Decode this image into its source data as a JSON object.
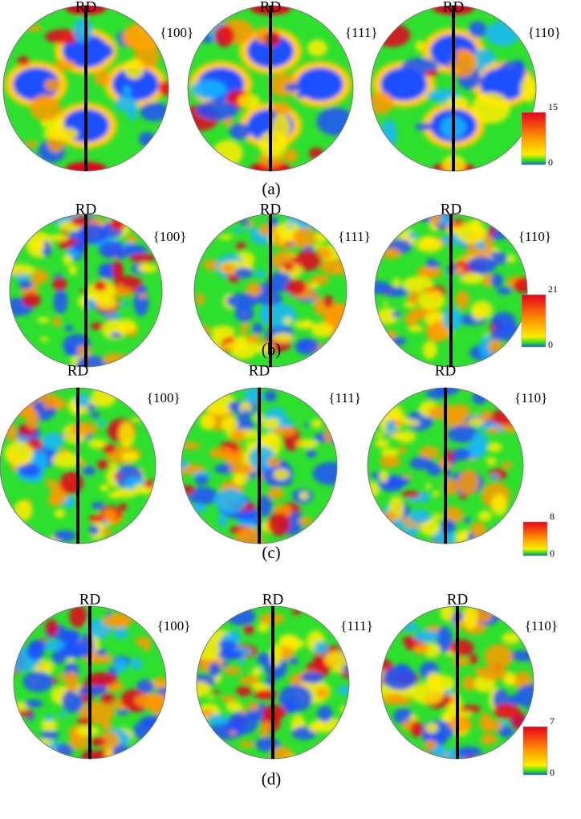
{
  "rows": [
    {
      "label": "(a)",
      "panels": [
        {
          "title": "RD",
          "plane": "{100}"
        },
        {
          "title": "RD",
          "plane": "{111}"
        },
        {
          "title": "RD",
          "plane": "{110}"
        }
      ],
      "scale": {
        "max": 15,
        "min": 0
      }
    },
    {
      "label": "(b)",
      "panels": [
        {
          "title": "RD",
          "plane": "{100}"
        },
        {
          "title": "RD",
          "plane": "{111}"
        },
        {
          "title": "RD",
          "plane": "{110}"
        }
      ],
      "scale": {
        "max": 21,
        "min": 0
      }
    },
    {
      "label": "(c)",
      "panels": [
        {
          "title": "RD",
          "plane": "{100}"
        },
        {
          "title": "RD",
          "plane": "{111}"
        },
        {
          "title": "RD",
          "plane": "{110}"
        }
      ],
      "scale": {
        "max": 8,
        "min": 0
      }
    },
    {
      "label": "(d)",
      "panels": [
        {
          "title": "RD",
          "plane": "{100}"
        },
        {
          "title": "RD",
          "plane": "{111}"
        },
        {
          "title": "RD",
          "plane": "{110}"
        }
      ],
      "scale": {
        "max": 7,
        "min": 0
      }
    }
  ]
}
